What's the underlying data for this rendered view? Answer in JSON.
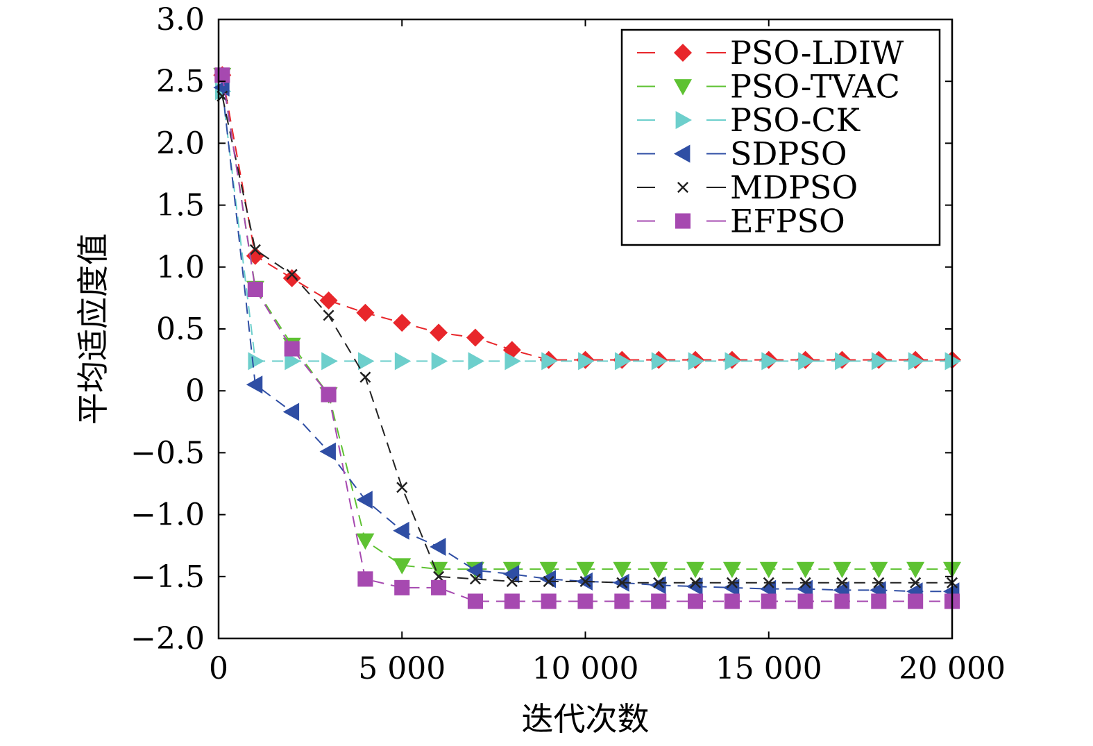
{
  "chart_data": {
    "type": "line",
    "title": "",
    "xlabel": "迭代次数",
    "ylabel": "平均适应度值",
    "xlim": [
      0,
      20000
    ],
    "ylim": [
      -2.0,
      3.0
    ],
    "x_ticks": [
      0,
      5000,
      10000,
      15000,
      20000
    ],
    "x_tick_labels": [
      "0",
      "5 000",
      "10 000",
      "15 000",
      "20 000"
    ],
    "y_ticks": [
      3.0,
      2.5,
      2.0,
      1.5,
      1.0,
      0.5,
      0,
      -0.5,
      -1.0,
      -1.5,
      -2.0
    ],
    "y_tick_labels": [
      "3.0",
      "2.5",
      "2.0",
      "1.5",
      "1.0",
      "0.5",
      "0",
      "−0.5",
      "−1.0",
      "−1.5",
      "−2.0"
    ],
    "grid": false,
    "legend_position": "top-right",
    "x": [
      100,
      1000,
      2000,
      3000,
      4000,
      5000,
      6000,
      7000,
      8000,
      9000,
      10000,
      11000,
      12000,
      13000,
      14000,
      15000,
      16000,
      17000,
      18000,
      19000,
      20000
    ],
    "series": [
      {
        "name": "PSO-LDIW",
        "color": "#e8262b",
        "marker": "diamond",
        "values": [
          2.55,
          1.09,
          0.91,
          0.73,
          0.63,
          0.55,
          0.47,
          0.43,
          0.33,
          0.25,
          0.25,
          0.25,
          0.25,
          0.25,
          0.25,
          0.25,
          0.25,
          0.25,
          0.25,
          0.25,
          0.25
        ]
      },
      {
        "name": "PSO-TVAC",
        "color": "#5ec232",
        "marker": "triangle-down",
        "values": [
          2.55,
          0.83,
          0.37,
          -0.03,
          -1.21,
          -1.41,
          -1.44,
          -1.44,
          -1.44,
          -1.44,
          -1.44,
          -1.44,
          -1.44,
          -1.44,
          -1.44,
          -1.44,
          -1.44,
          -1.44,
          -1.44,
          -1.44,
          -1.44
        ]
      },
      {
        "name": "PSO-CK",
        "color": "#6dcfcc",
        "marker": "triangle-right",
        "values": [
          2.42,
          0.24,
          0.24,
          0.24,
          0.24,
          0.24,
          0.24,
          0.24,
          0.24,
          0.24,
          0.24,
          0.24,
          0.24,
          0.24,
          0.24,
          0.24,
          0.24,
          0.24,
          0.24,
          0.24,
          0.24
        ]
      },
      {
        "name": "SDPSO",
        "color": "#2f4ea4",
        "marker": "triangle-left",
        "values": [
          2.45,
          0.05,
          -0.17,
          -0.49,
          -0.88,
          -1.13,
          -1.26,
          -1.45,
          -1.48,
          -1.52,
          -1.54,
          -1.55,
          -1.57,
          -1.58,
          -1.59,
          -1.6,
          -1.6,
          -1.61,
          -1.61,
          -1.62,
          -1.62
        ]
      },
      {
        "name": "MDPSO",
        "color": "#222222",
        "marker": "x",
        "values": [
          2.38,
          1.14,
          0.94,
          0.61,
          0.11,
          -0.78,
          -1.5,
          -1.52,
          -1.54,
          -1.54,
          -1.54,
          -1.55,
          -1.55,
          -1.55,
          -1.55,
          -1.55,
          -1.55,
          -1.55,
          -1.55,
          -1.55,
          -1.55
        ]
      },
      {
        "name": "EFPSO",
        "color": "#a649b0",
        "marker": "square",
        "values": [
          2.55,
          0.82,
          0.34,
          -0.03,
          -1.52,
          -1.59,
          -1.59,
          -1.7,
          -1.7,
          -1.7,
          -1.7,
          -1.7,
          -1.7,
          -1.7,
          -1.7,
          -1.7,
          -1.7,
          -1.7,
          -1.7,
          -1.7,
          -1.7
        ]
      }
    ]
  }
}
